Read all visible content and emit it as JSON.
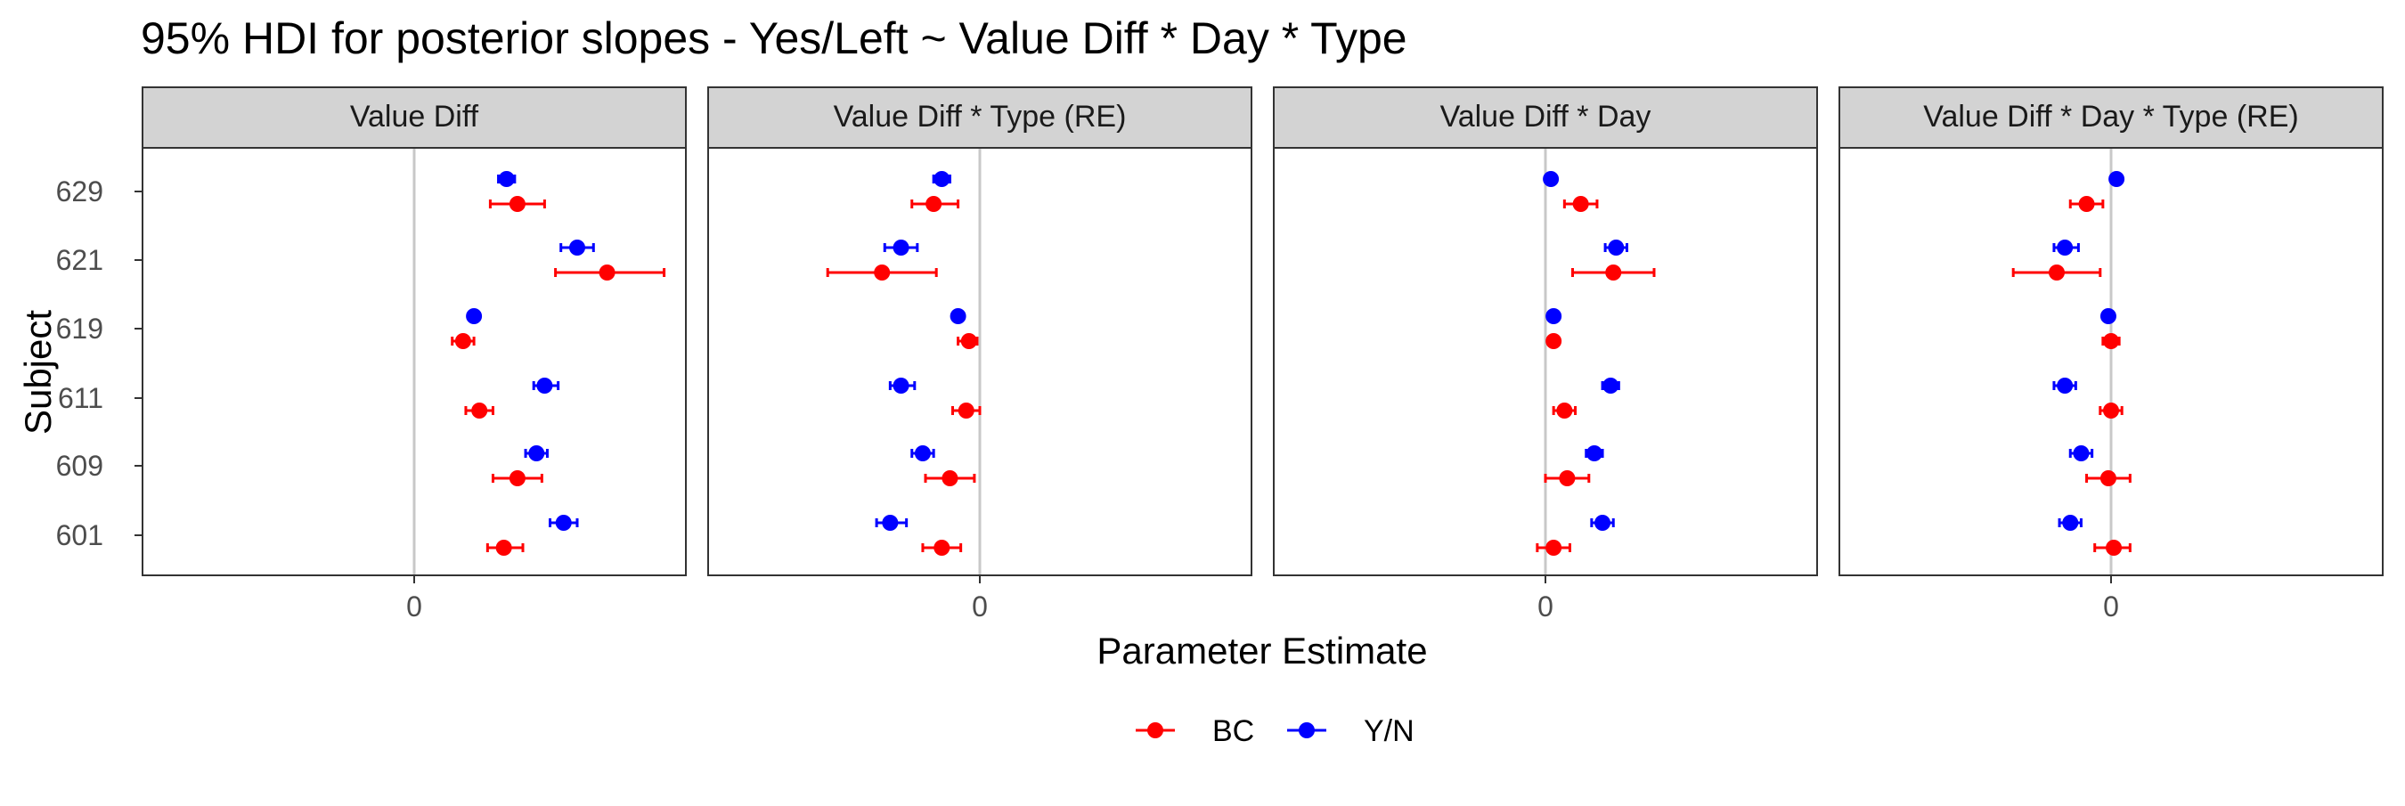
{
  "chart_data": {
    "type": "scatter",
    "title": "95% HDI for posterior slopes - Yes/Left ~ Value Diff * Day * Type",
    "xlabel": "Parameter Estimate",
    "ylabel": "Subject",
    "x_ticks": [
      "0"
    ],
    "y_categories": [
      "629",
      "621",
      "619",
      "611",
      "609",
      "601"
    ],
    "legend": {
      "position": "bottom",
      "entries": [
        "BC",
        "Y/N"
      ]
    },
    "colors": {
      "BC": "#ff0000",
      "Y/N": "#0000ff",
      "zero_line": "#c8c8c8",
      "strip_bg": "#d3d3d3"
    },
    "facets": [
      {
        "label": "Value Diff",
        "xlim": [
          -1.0,
          1.0
        ],
        "series": [
          {
            "name": "BC",
            "points": [
              {
                "subject": "629",
                "est": 0.38,
                "lo": 0.28,
                "hi": 0.48
              },
              {
                "subject": "621",
                "est": 0.71,
                "lo": 0.52,
                "hi": 0.92
              },
              {
                "subject": "619",
                "est": 0.18,
                "lo": 0.14,
                "hi": 0.22
              },
              {
                "subject": "611",
                "est": 0.24,
                "lo": 0.19,
                "hi": 0.29
              },
              {
                "subject": "609",
                "est": 0.38,
                "lo": 0.29,
                "hi": 0.47
              },
              {
                "subject": "601",
                "est": 0.33,
                "lo": 0.27,
                "hi": 0.4
              }
            ]
          },
          {
            "name": "Y/N",
            "points": [
              {
                "subject": "629",
                "est": 0.34,
                "lo": 0.31,
                "hi": 0.37
              },
              {
                "subject": "621",
                "est": 0.6,
                "lo": 0.54,
                "hi": 0.66
              },
              {
                "subject": "619",
                "est": 0.22,
                "lo": 0.2,
                "hi": 0.24
              },
              {
                "subject": "611",
                "est": 0.48,
                "lo": 0.44,
                "hi": 0.53
              },
              {
                "subject": "609",
                "est": 0.45,
                "lo": 0.41,
                "hi": 0.49
              },
              {
                "subject": "601",
                "est": 0.55,
                "lo": 0.5,
                "hi": 0.6
              }
            ]
          }
        ]
      },
      {
        "label": "Value Diff * Type (RE)",
        "xlim": [
          -1.0,
          1.0
        ],
        "series": [
          {
            "name": "BC",
            "points": [
              {
                "subject": "629",
                "est": -0.17,
                "lo": -0.25,
                "hi": -0.08
              },
              {
                "subject": "621",
                "est": -0.36,
                "lo": -0.56,
                "hi": -0.16
              },
              {
                "subject": "619",
                "est": -0.04,
                "lo": -0.08,
                "hi": -0.01
              },
              {
                "subject": "611",
                "est": -0.05,
                "lo": -0.1,
                "hi": 0.0
              },
              {
                "subject": "609",
                "est": -0.11,
                "lo": -0.2,
                "hi": -0.02
              },
              {
                "subject": "601",
                "est": -0.14,
                "lo": -0.21,
                "hi": -0.07
              }
            ]
          },
          {
            "name": "Y/N",
            "points": [
              {
                "subject": "629",
                "est": -0.14,
                "lo": -0.17,
                "hi": -0.11
              },
              {
                "subject": "621",
                "est": -0.29,
                "lo": -0.35,
                "hi": -0.23
              },
              {
                "subject": "619",
                "est": -0.08,
                "lo": -0.1,
                "hi": -0.06
              },
              {
                "subject": "611",
                "est": -0.29,
                "lo": -0.33,
                "hi": -0.24
              },
              {
                "subject": "609",
                "est": -0.21,
                "lo": -0.25,
                "hi": -0.17
              },
              {
                "subject": "601",
                "est": -0.33,
                "lo": -0.38,
                "hi": -0.27
              }
            ]
          }
        ]
      },
      {
        "label": "Value Diff * Day",
        "xlim": [
          -1.0,
          1.0
        ],
        "series": [
          {
            "name": "BC",
            "points": [
              {
                "subject": "629",
                "est": 0.13,
                "lo": 0.07,
                "hi": 0.19
              },
              {
                "subject": "621",
                "est": 0.25,
                "lo": 0.1,
                "hi": 0.4
              },
              {
                "subject": "619",
                "est": 0.03,
                "lo": 0.01,
                "hi": 0.05
              },
              {
                "subject": "611",
                "est": 0.07,
                "lo": 0.03,
                "hi": 0.11
              },
              {
                "subject": "609",
                "est": 0.08,
                "lo": 0.0,
                "hi": 0.16
              },
              {
                "subject": "601",
                "est": 0.03,
                "lo": -0.03,
                "hi": 0.09
              }
            ]
          },
          {
            "name": "Y/N",
            "points": [
              {
                "subject": "629",
                "est": 0.02,
                "lo": 0.01,
                "hi": 0.03
              },
              {
                "subject": "621",
                "est": 0.26,
                "lo": 0.22,
                "hi": 0.3
              },
              {
                "subject": "619",
                "est": 0.03,
                "lo": 0.02,
                "hi": 0.04
              },
              {
                "subject": "611",
                "est": 0.24,
                "lo": 0.21,
                "hi": 0.27
              },
              {
                "subject": "609",
                "est": 0.18,
                "lo": 0.15,
                "hi": 0.21
              },
              {
                "subject": "601",
                "est": 0.21,
                "lo": 0.17,
                "hi": 0.25
              }
            ]
          }
        ]
      },
      {
        "label": "Value Diff * Day * Type (RE)",
        "xlim": [
          -1.0,
          1.0
        ],
        "series": [
          {
            "name": "BC",
            "points": [
              {
                "subject": "629",
                "est": -0.09,
                "lo": -0.15,
                "hi": -0.03
              },
              {
                "subject": "621",
                "est": -0.2,
                "lo": -0.36,
                "hi": -0.04
              },
              {
                "subject": "619",
                "est": 0.0,
                "lo": -0.03,
                "hi": 0.03
              },
              {
                "subject": "611",
                "est": 0.0,
                "lo": -0.04,
                "hi": 0.04
              },
              {
                "subject": "609",
                "est": -0.01,
                "lo": -0.09,
                "hi": 0.07
              },
              {
                "subject": "601",
                "est": 0.01,
                "lo": -0.06,
                "hi": 0.07
              }
            ]
          },
          {
            "name": "Y/N",
            "points": [
              {
                "subject": "629",
                "est": 0.02,
                "lo": 0.01,
                "hi": 0.03
              },
              {
                "subject": "621",
                "est": -0.17,
                "lo": -0.21,
                "hi": -0.12
              },
              {
                "subject": "619",
                "est": -0.01,
                "lo": -0.02,
                "hi": 0.0
              },
              {
                "subject": "611",
                "est": -0.17,
                "lo": -0.21,
                "hi": -0.13
              },
              {
                "subject": "609",
                "est": -0.11,
                "lo": -0.15,
                "hi": -0.07
              },
              {
                "subject": "601",
                "est": -0.15,
                "lo": -0.19,
                "hi": -0.11
              }
            ]
          }
        ]
      }
    ]
  }
}
